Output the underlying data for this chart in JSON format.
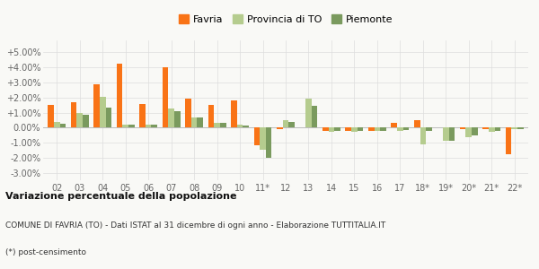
{
  "categories": [
    "02",
    "03",
    "04",
    "05",
    "06",
    "07",
    "08",
    "09",
    "10",
    "11*",
    "12",
    "13",
    "14",
    "15",
    "16",
    "17",
    "18*",
    "19*",
    "20*",
    "21*",
    "22*"
  ],
  "favria": [
    1.5,
    1.7,
    2.85,
    4.25,
    1.55,
    4.0,
    1.95,
    1.5,
    1.8,
    -1.2,
    -0.1,
    0.0,
    -0.25,
    -0.2,
    -0.2,
    0.3,
    0.5,
    0.0,
    -0.1,
    -0.1,
    -1.75
  ],
  "provincia": [
    0.4,
    0.95,
    2.05,
    0.2,
    0.2,
    1.25,
    0.65,
    0.3,
    0.2,
    -1.45,
    0.5,
    1.9,
    -0.3,
    -0.3,
    -0.25,
    -0.2,
    -1.1,
    -0.9,
    -0.65,
    -0.3,
    -0.1
  ],
  "piemonte": [
    0.25,
    0.85,
    1.35,
    0.2,
    0.2,
    1.1,
    0.7,
    0.3,
    0.15,
    -2.0,
    0.35,
    1.45,
    -0.25,
    -0.2,
    -0.2,
    -0.15,
    -0.2,
    -0.85,
    -0.5,
    -0.25,
    -0.1
  ],
  "color_favria": "#f97316",
  "color_provincia": "#b5cc8e",
  "color_piemonte": "#7a9a5e",
  "bg_color": "#f9f9f6",
  "grid_color": "#dddddd",
  "yticks": [
    -3.0,
    -2.0,
    -1.0,
    0.0,
    1.0,
    2.0,
    3.0,
    4.0,
    5.0
  ],
  "ylim": [
    -3.5,
    5.8
  ],
  "title_bold": "Variazione percentuale della popolazione",
  "subtitle": "COMUNE DI FAVRIA (TO) - Dati ISTAT al 31 dicembre di ogni anno - Elaborazione TUTTITALIA.IT",
  "footnote": "(*) post-censimento",
  "legend_labels": [
    "Favria",
    "Provincia di TO",
    "Piemonte"
  ]
}
